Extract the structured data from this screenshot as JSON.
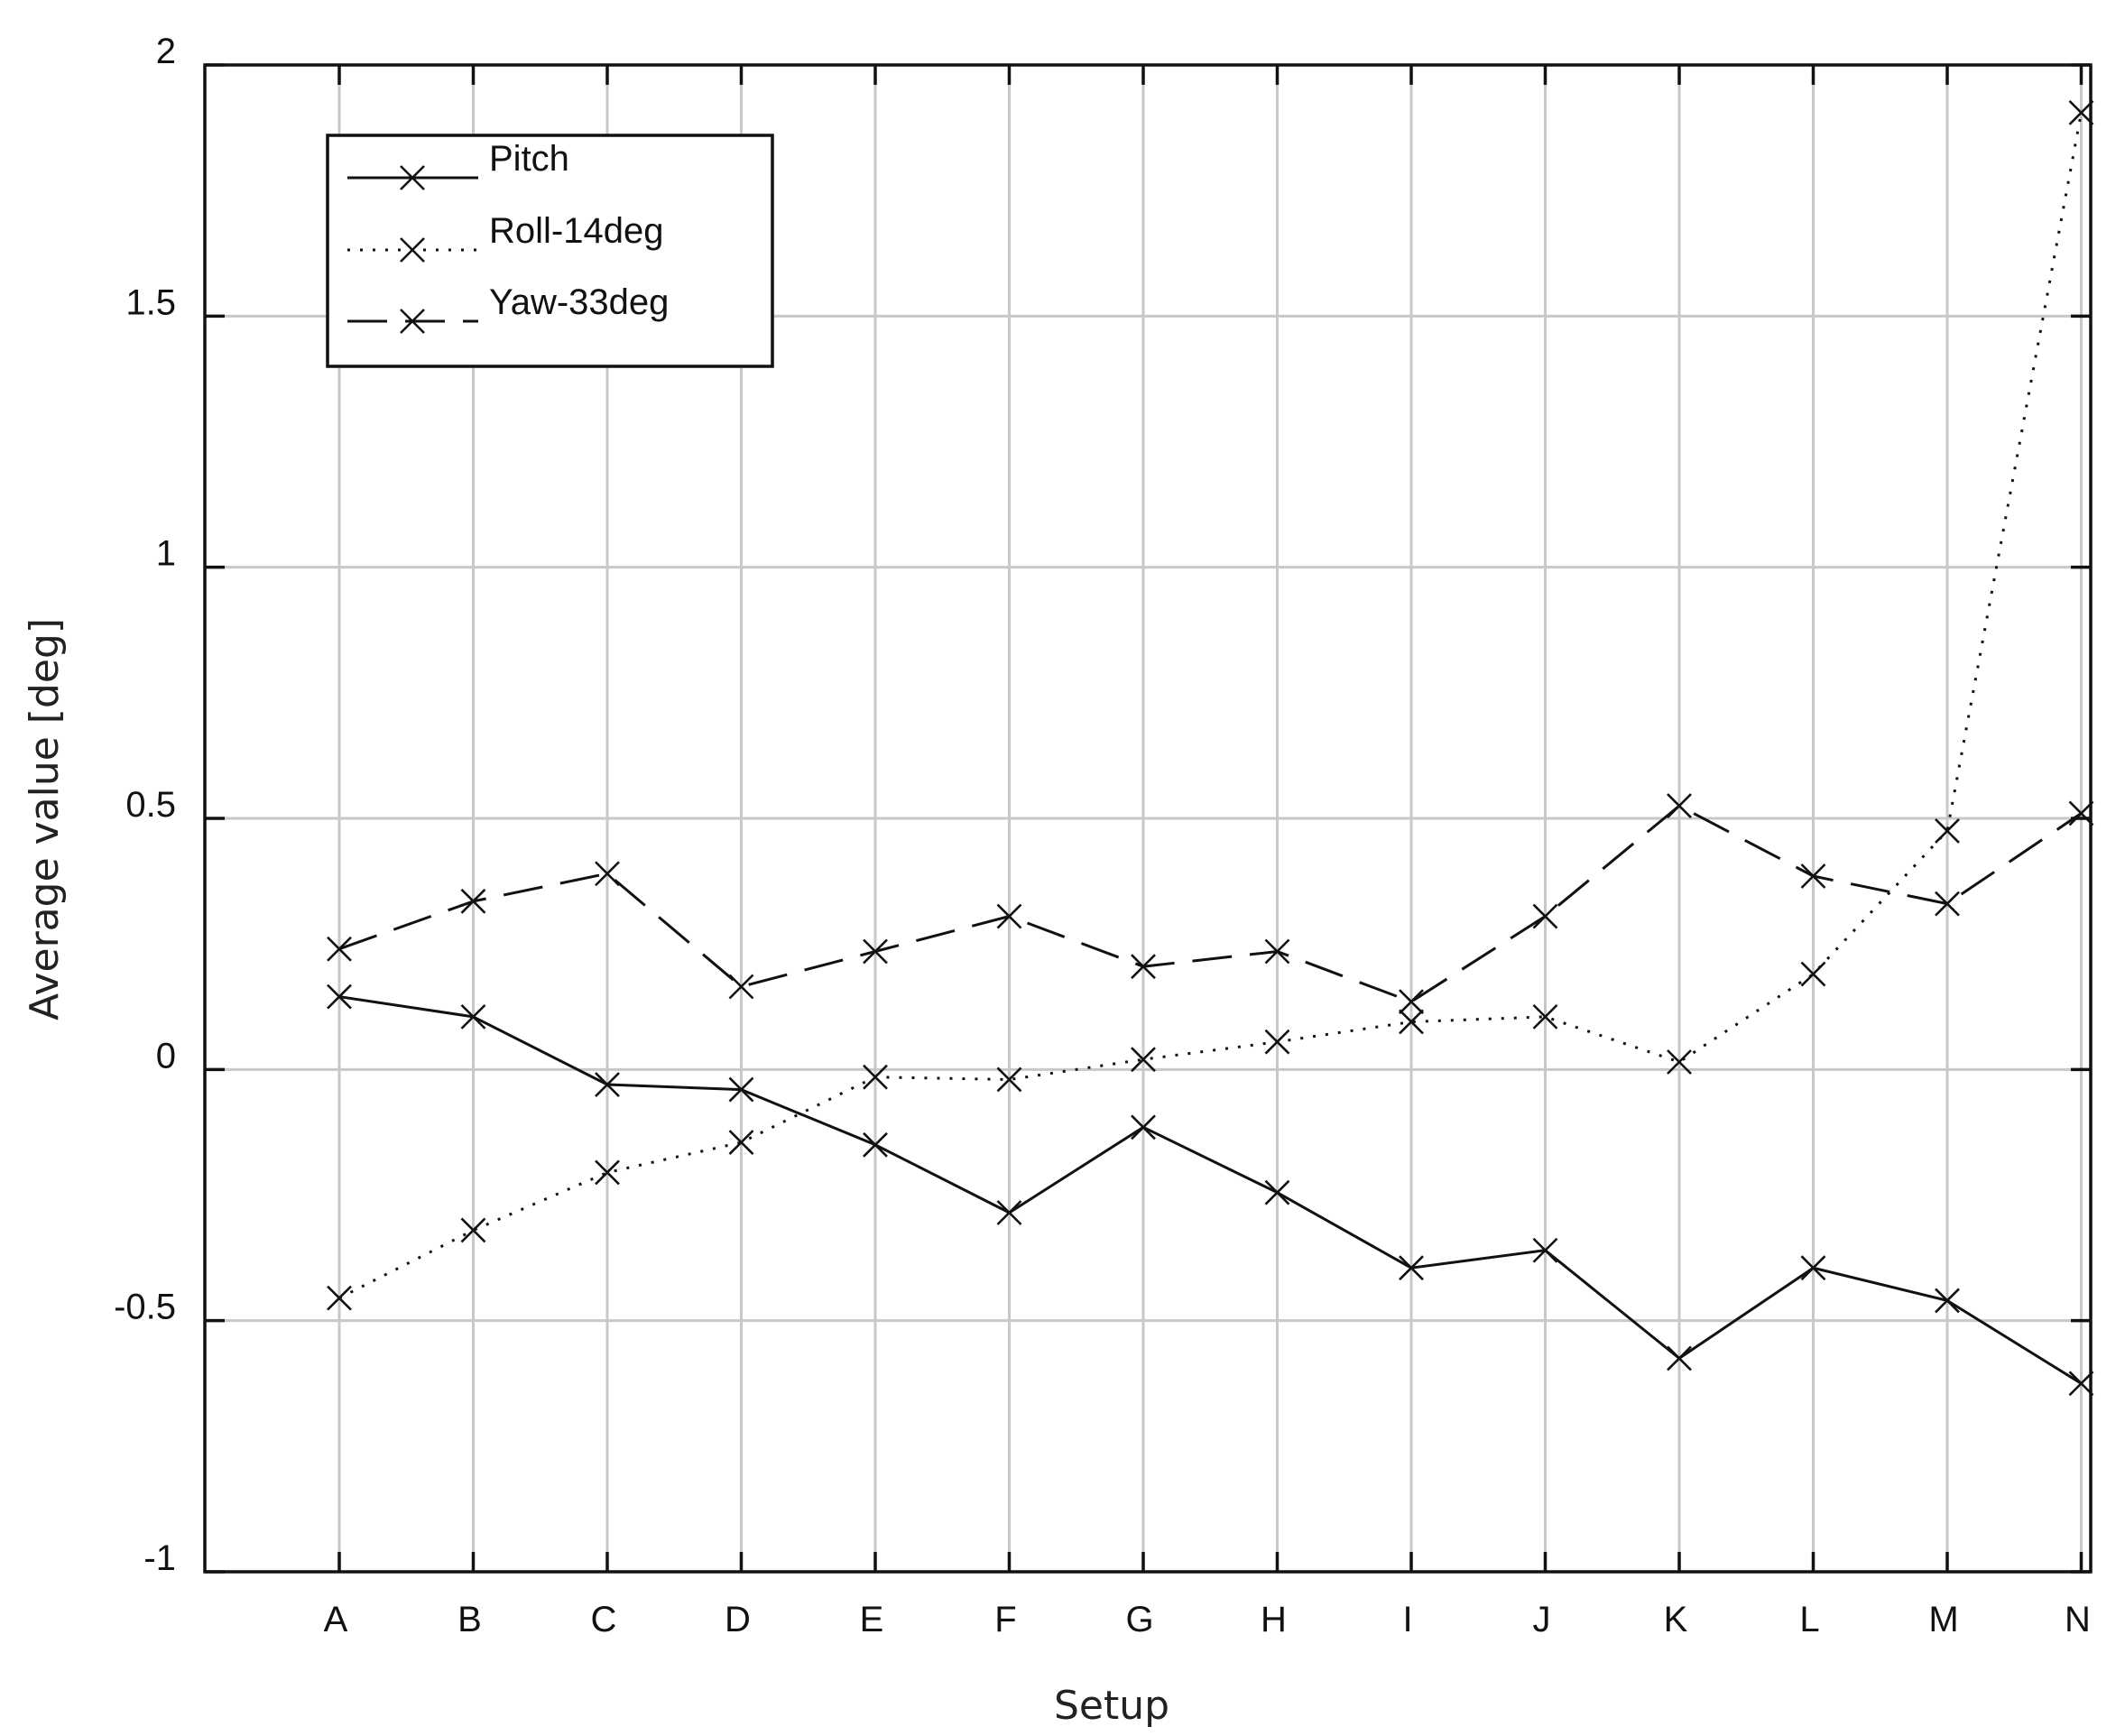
{
  "chart_data": {
    "type": "line",
    "categories": [
      "A",
      "B",
      "C",
      "D",
      "E",
      "F",
      "G",
      "H",
      "I",
      "J",
      "K",
      "L",
      "M",
      "N"
    ],
    "series": [
      {
        "name": "Pitch",
        "style": "solid",
        "marker": "x",
        "values": [
          0.145,
          0.105,
          -0.03,
          -0.04,
          -0.15,
          -0.285,
          -0.115,
          -0.245,
          -0.395,
          -0.36,
          -0.575,
          -0.395,
          -0.46,
          -0.625
        ]
      },
      {
        "name": "Roll-14deg",
        "style": "dotted",
        "marker": "x",
        "values": [
          -0.455,
          -0.32,
          -0.205,
          -0.145,
          -0.015,
          -0.02,
          0.02,
          0.055,
          0.095,
          0.105,
          0.015,
          0.19,
          0.475,
          1.905
        ]
      },
      {
        "name": "Yaw-33deg",
        "style": "dashed",
        "marker": "x",
        "values": [
          0.24,
          0.335,
          0.39,
          0.165,
          0.235,
          0.305,
          0.205,
          0.235,
          0.135,
          0.305,
          0.525,
          0.385,
          0.33,
          0.51
        ]
      }
    ],
    "xlabel": "Setup",
    "ylabel": "Average value [deg]",
    "ylim": [
      -1,
      2
    ],
    "yticks": [
      2,
      1.5,
      1,
      0.5,
      0,
      -0.5,
      -1
    ],
    "ytick_labels": [
      "2",
      "1.5",
      "1",
      "0.5",
      "0",
      "-0.5",
      "-1"
    ],
    "grid": true,
    "legend_position": "top-left"
  }
}
